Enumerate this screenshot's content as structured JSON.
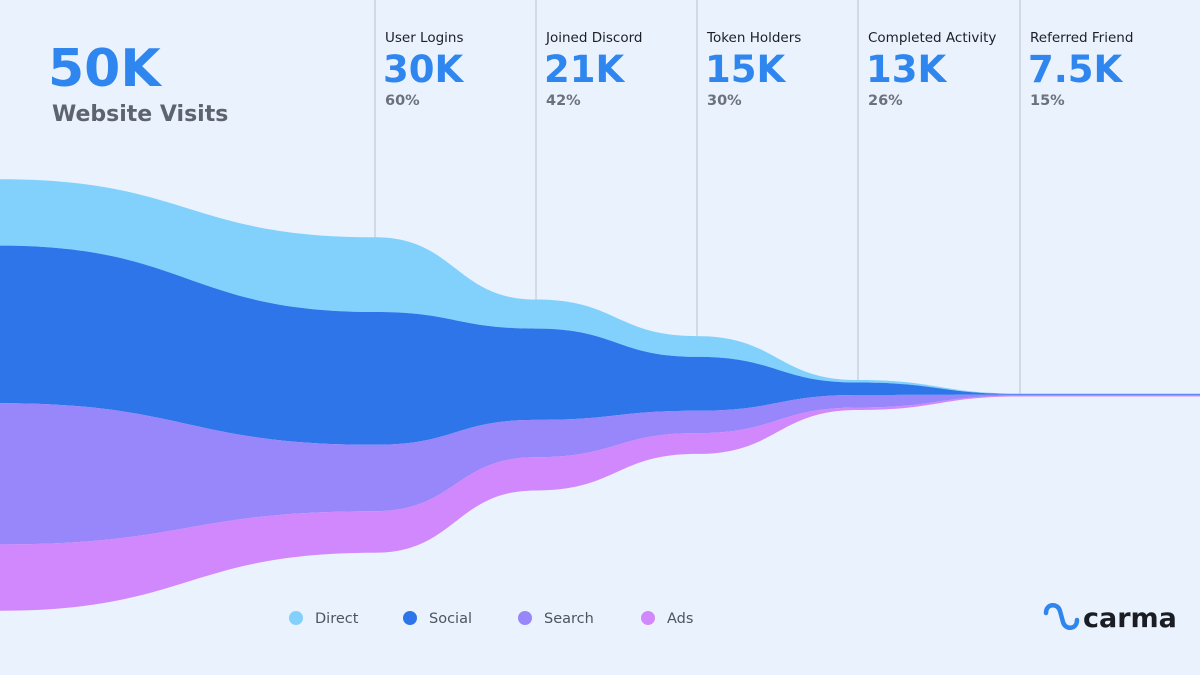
{
  "hero": {
    "value": "50K",
    "label": "Website Visits"
  },
  "brand": {
    "name": "carma",
    "icon": "carma-logo-icon"
  },
  "chart_data": {
    "type": "area",
    "title": "",
    "stages": [
      {
        "label": "Website Visits",
        "value": "50K",
        "percent": ""
      },
      {
        "label": "User Logins",
        "value": "30K",
        "percent": "60%"
      },
      {
        "label": "Joined Discord",
        "value": "21K",
        "percent": "42%"
      },
      {
        "label": "Token Holders",
        "value": "15K",
        "percent": "30%"
      },
      {
        "label": "Completed Activity",
        "value": "13K",
        "percent": "26%"
      },
      {
        "label": "Referred Friend",
        "value": "7.5K",
        "percent": "15%"
      }
    ],
    "series": [
      {
        "name": "Direct",
        "color": "#82d1fc",
        "values": [
          8,
          9,
          3.5,
          2.5,
          0.3,
          0.05
        ]
      },
      {
        "name": "Social",
        "color": "#2d75e8",
        "values": [
          19,
          16,
          11,
          6.5,
          1.5,
          0.1
        ]
      },
      {
        "name": "Search",
        "color": "#9787fb",
        "values": [
          17,
          8,
          4.5,
          2.7,
          1.5,
          0.1
        ]
      },
      {
        "name": "Ads",
        "color": "#d188fd",
        "values": [
          8,
          5,
          4,
          2.5,
          0.3,
          0.1
        ]
      }
    ],
    "legend_position": "bottom",
    "grid": false
  }
}
